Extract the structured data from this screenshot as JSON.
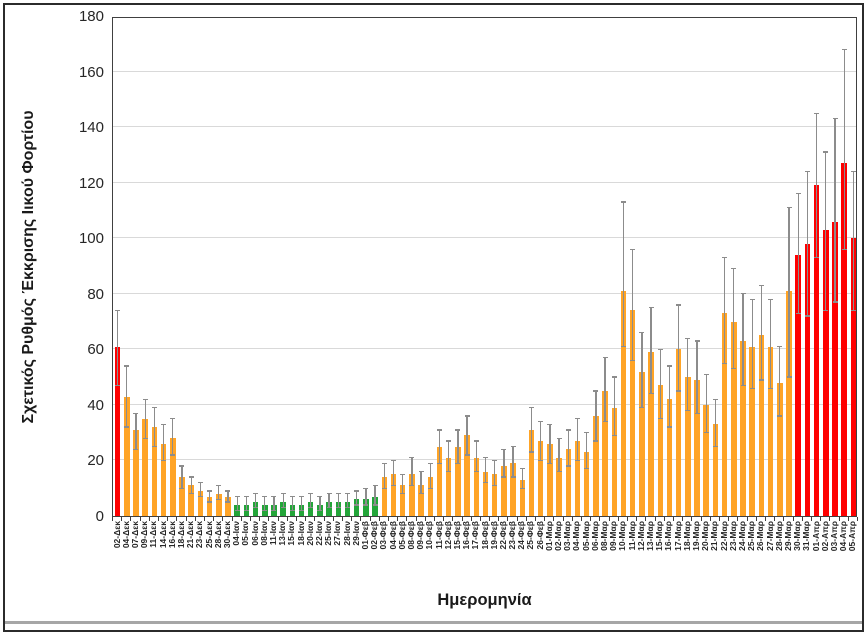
{
  "chart_data": {
    "type": "bar",
    "title": "",
    "xlabel": "Ημερομηνία",
    "ylabel": "Σχετικός Ρυθμός Έκκρισης Ιικού Φορτίου",
    "ylim": [
      0,
      180
    ],
    "ytick_step": 20,
    "yticks": [
      0,
      20,
      40,
      60,
      80,
      100,
      120,
      140,
      160,
      180
    ],
    "grid": "horizontal",
    "legend": "none",
    "error_bars": true,
    "palette": {
      "r": "#fe0000",
      "o": "#ffa426",
      "g": "#23a539",
      "error": "#8c8c8c",
      "gridline": "#d9d9d9"
    },
    "categories": [
      "02-Δεκ",
      "04-Δεκ",
      "07-Δεκ",
      "09-Δεκ",
      "11-Δεκ",
      "14-Δεκ",
      "16-Δεκ",
      "18-Δεκ",
      "21-Δεκ",
      "23-Δεκ",
      "25-Δεκ",
      "28-Δεκ",
      "30-Δεκ",
      "04-Ιαν",
      "05-Ιαν",
      "06-Ιαν",
      "08-Ιαν",
      "11-Ιαν",
      "13-Ιαν",
      "15-Ιαν",
      "18-Ιαν",
      "20-Ιαν",
      "22-Ιαν",
      "25-Ιαν",
      "27-Ιαν",
      "28-Ιαν",
      "29-Ιαν",
      "01-Φεβ",
      "02-Φεβ",
      "03-Φεβ",
      "04-Φεβ",
      "05-Φεβ",
      "08-Φεβ",
      "09-Φεβ",
      "10-Φεβ",
      "11-Φεβ",
      "12-Φεβ",
      "15-Φεβ",
      "16-Φεβ",
      "17-Φεβ",
      "18-Φεβ",
      "19-Φεβ",
      "22-Φεβ",
      "23-Φεβ",
      "24-Φεβ",
      "25-Φεβ",
      "26-Φεβ",
      "01-Μαρ",
      "02-Μαρ",
      "03-Μαρ",
      "04-Μαρ",
      "05-Μαρ",
      "06-Μαρ",
      "08-Μαρ",
      "09-Μαρ",
      "10-Μαρ",
      "11-Μαρ",
      "12-Μαρ",
      "13-Μαρ",
      "15-Μαρ",
      "16-Μαρ",
      "17-Μαρ",
      "18-Μαρ",
      "19-Μαρ",
      "20-Μαρ",
      "21-Μαρ",
      "22-Μαρ",
      "23-Μαρ",
      "24-Μαρ",
      "25-Μαρ",
      "26-Μαρ",
      "27-Μαρ",
      "28-Μαρ",
      "29-Μαρ",
      "30-Μαρ",
      "31-Μαρ",
      "01-Απρ",
      "02-Απρ",
      "03-Απρ",
      "04-Απρ",
      "05-Απρ"
    ],
    "values": [
      61,
      43,
      31,
      35,
      32,
      26,
      28,
      14,
      11,
      9,
      7,
      8,
      7,
      4,
      4,
      5,
      4,
      4,
      5,
      4,
      4,
      5,
      4,
      5,
      5,
      5,
      6,
      6,
      7,
      14,
      15,
      11,
      15,
      11,
      14,
      25,
      21,
      25,
      29,
      21,
      16,
      15,
      18,
      19,
      13,
      31,
      27,
      26,
      21,
      24,
      27,
      23,
      36,
      45,
      39,
      81,
      74,
      52,
      59,
      47,
      42,
      60,
      50,
      49,
      40,
      33,
      73,
      70,
      63,
      61,
      65,
      61,
      48,
      81,
      94,
      98,
      119,
      103,
      106,
      127,
      100
    ],
    "error_low": [
      47,
      32,
      24,
      28,
      25,
      20,
      22,
      10,
      8,
      7,
      5,
      6,
      5,
      2,
      2,
      3,
      2,
      2,
      3,
      2,
      2,
      3,
      2,
      3,
      3,
      3,
      4,
      4,
      4,
      10,
      11,
      8,
      11,
      8,
      10,
      19,
      16,
      19,
      22,
      16,
      12,
      11,
      14,
      14,
      10,
      23,
      20,
      19,
      16,
      18,
      20,
      17,
      27,
      34,
      29,
      61,
      56,
      39,
      44,
      35,
      32,
      45,
      38,
      37,
      30,
      25,
      55,
      53,
      47,
      46,
      49,
      46,
      36,
      50,
      73,
      72,
      93,
      74,
      77,
      96,
      74
    ],
    "error_high": [
      74,
      54,
      37,
      42,
      39,
      33,
      35,
      18,
      14,
      12,
      9,
      11,
      9,
      7,
      7,
      8,
      7,
      7,
      8,
      7,
      7,
      8,
      7,
      8,
      8,
      8,
      9,
      10,
      11,
      19,
      20,
      15,
      21,
      16,
      19,
      31,
      27,
      31,
      36,
      27,
      21,
      20,
      24,
      25,
      17,
      39,
      34,
      33,
      28,
      31,
      35,
      30,
      45,
      57,
      50,
      113,
      96,
      66,
      75,
      60,
      54,
      76,
      64,
      63,
      51,
      42,
      93,
      89,
      80,
      78,
      83,
      78,
      61,
      111,
      116,
      124,
      145,
      131,
      143,
      168,
      124
    ],
    "bar_color_keys": [
      "r",
      "o",
      "o",
      "o",
      "o",
      "o",
      "o",
      "o",
      "o",
      "o",
      "o",
      "o",
      "o",
      "g",
      "g",
      "g",
      "g",
      "g",
      "g",
      "g",
      "g",
      "g",
      "g",
      "g",
      "g",
      "g",
      "g",
      "g",
      "g",
      "o",
      "o",
      "o",
      "o",
      "o",
      "o",
      "o",
      "o",
      "o",
      "o",
      "o",
      "o",
      "o",
      "o",
      "o",
      "o",
      "o",
      "o",
      "o",
      "o",
      "o",
      "o",
      "o",
      "o",
      "o",
      "o",
      "o",
      "o",
      "o",
      "o",
      "o",
      "o",
      "o",
      "o",
      "o",
      "o",
      "o",
      "o",
      "o",
      "o",
      "o",
      "o",
      "o",
      "o",
      "o",
      "r",
      "r",
      "r",
      "r",
      "r",
      "r",
      "r"
    ]
  }
}
